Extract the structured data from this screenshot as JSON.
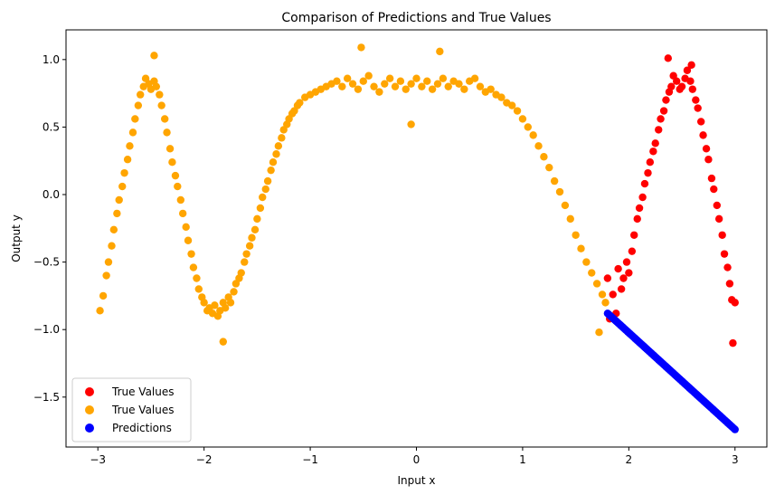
{
  "chart_data": {
    "type": "scatter",
    "title": "Comparison of Predictions and True Values",
    "xlabel": "Input x",
    "ylabel": "Output y",
    "xlim": [
      -3.3,
      3.3
    ],
    "ylim": [
      -1.87,
      1.22
    ],
    "xticks": [
      -3,
      -2,
      -1,
      0,
      1,
      2,
      3
    ],
    "xtick_labels": [
      "−3",
      "−2",
      "−1",
      "0",
      "1",
      "2",
      "3"
    ],
    "yticks": [
      -1.5,
      -1.0,
      -0.5,
      0.0,
      0.5,
      1.0
    ],
    "ytick_labels": [
      "−1.5",
      "−1.0",
      "−0.5",
      "0.0",
      "0.5",
      "1.0"
    ],
    "grid": false,
    "legend_position": "lower-left",
    "series": [
      {
        "name": "True Values",
        "color": "#ff0000",
        "description_of_fn": "noisy y = sin(x) + cos(2x)-like curve",
        "points": [
          [
            1.8,
            -0.62
          ],
          [
            1.82,
            -0.92
          ],
          [
            1.85,
            -0.74
          ],
          [
            1.88,
            -0.88
          ],
          [
            1.9,
            -0.55
          ],
          [
            1.93,
            -0.7
          ],
          [
            1.95,
            -0.62
          ],
          [
            1.98,
            -0.5
          ],
          [
            2.0,
            -0.58
          ],
          [
            2.03,
            -0.42
          ],
          [
            2.05,
            -0.3
          ],
          [
            2.08,
            -0.18
          ],
          [
            2.1,
            -0.1
          ],
          [
            2.13,
            -0.02
          ],
          [
            2.15,
            0.08
          ],
          [
            2.18,
            0.16
          ],
          [
            2.2,
            0.24
          ],
          [
            2.23,
            0.32
          ],
          [
            2.25,
            0.38
          ],
          [
            2.28,
            0.48
          ],
          [
            2.3,
            0.56
          ],
          [
            2.33,
            0.62
          ],
          [
            2.35,
            0.7
          ],
          [
            2.38,
            0.76
          ],
          [
            2.4,
            0.8
          ],
          [
            2.42,
            0.88
          ],
          [
            2.45,
            0.84
          ],
          [
            2.48,
            0.78
          ],
          [
            2.5,
            0.8
          ],
          [
            2.53,
            0.86
          ],
          [
            2.55,
            0.92
          ],
          [
            2.58,
            0.84
          ],
          [
            2.6,
            0.78
          ],
          [
            2.63,
            0.7
          ],
          [
            2.65,
            0.64
          ],
          [
            2.68,
            0.54
          ],
          [
            2.7,
            0.44
          ],
          [
            2.73,
            0.34
          ],
          [
            2.75,
            0.26
          ],
          [
            2.78,
            0.12
          ],
          [
            2.8,
            0.04
          ],
          [
            2.83,
            -0.08
          ],
          [
            2.85,
            -0.18
          ],
          [
            2.88,
            -0.3
          ],
          [
            2.9,
            -0.44
          ],
          [
            2.93,
            -0.54
          ],
          [
            2.95,
            -0.66
          ],
          [
            2.97,
            -0.78
          ],
          [
            3.0,
            -0.8
          ],
          [
            2.98,
            -1.1
          ],
          [
            2.37,
            1.01
          ],
          [
            2.59,
            0.96
          ]
        ]
      },
      {
        "name": "True Values",
        "color": "#ffa500",
        "points": [
          [
            -2.98,
            -0.86
          ],
          [
            -2.95,
            -0.75
          ],
          [
            -2.92,
            -0.6
          ],
          [
            -2.9,
            -0.5
          ],
          [
            -2.87,
            -0.38
          ],
          [
            -2.85,
            -0.26
          ],
          [
            -2.82,
            -0.14
          ],
          [
            -2.8,
            -0.04
          ],
          [
            -2.77,
            0.06
          ],
          [
            -2.75,
            0.16
          ],
          [
            -2.72,
            0.26
          ],
          [
            -2.7,
            0.36
          ],
          [
            -2.67,
            0.46
          ],
          [
            -2.65,
            0.56
          ],
          [
            -2.62,
            0.66
          ],
          [
            -2.6,
            0.74
          ],
          [
            -2.57,
            0.8
          ],
          [
            -2.55,
            0.86
          ],
          [
            -2.52,
            0.82
          ],
          [
            -2.5,
            0.78
          ],
          [
            -2.47,
            0.84
          ],
          [
            -2.45,
            0.8
          ],
          [
            -2.42,
            0.74
          ],
          [
            -2.4,
            0.66
          ],
          [
            -2.37,
            0.56
          ],
          [
            -2.35,
            0.46
          ],
          [
            -2.32,
            0.34
          ],
          [
            -2.3,
            0.24
          ],
          [
            -2.27,
            0.14
          ],
          [
            -2.25,
            0.06
          ],
          [
            -2.22,
            -0.04
          ],
          [
            -2.2,
            -0.14
          ],
          [
            -2.17,
            -0.24
          ],
          [
            -2.15,
            -0.34
          ],
          [
            -2.12,
            -0.44
          ],
          [
            -2.1,
            -0.54
          ],
          [
            -2.07,
            -0.62
          ],
          [
            -2.05,
            -0.7
          ],
          [
            -2.02,
            -0.76
          ],
          [
            -2.0,
            -0.8
          ],
          [
            -1.97,
            -0.86
          ],
          [
            -1.95,
            -0.84
          ],
          [
            -1.92,
            -0.88
          ],
          [
            -1.9,
            -0.82
          ],
          [
            -1.87,
            -0.9
          ],
          [
            -1.85,
            -0.86
          ],
          [
            -1.82,
            -0.8
          ],
          [
            -1.8,
            -0.84
          ],
          [
            -1.77,
            -0.76
          ],
          [
            -1.75,
            -0.8
          ],
          [
            -1.72,
            -0.72
          ],
          [
            -1.7,
            -0.66
          ],
          [
            -1.67,
            -0.62
          ],
          [
            -1.65,
            -0.58
          ],
          [
            -1.62,
            -0.5
          ],
          [
            -1.6,
            -0.44
          ],
          [
            -1.57,
            -0.38
          ],
          [
            -1.55,
            -0.32
          ],
          [
            -1.52,
            -0.26
          ],
          [
            -1.5,
            -0.18
          ],
          [
            -1.47,
            -0.1
          ],
          [
            -1.45,
            -0.02
          ],
          [
            -1.42,
            0.04
          ],
          [
            -1.4,
            0.1
          ],
          [
            -1.37,
            0.18
          ],
          [
            -1.35,
            0.24
          ],
          [
            -1.32,
            0.3
          ],
          [
            -1.3,
            0.36
          ],
          [
            -1.27,
            0.42
          ],
          [
            -1.25,
            0.48
          ],
          [
            -1.22,
            0.52
          ],
          [
            -1.2,
            0.56
          ],
          [
            -1.17,
            0.6
          ],
          [
            -1.15,
            0.62
          ],
          [
            -1.12,
            0.66
          ],
          [
            -1.1,
            0.68
          ],
          [
            -1.05,
            0.72
          ],
          [
            -1.0,
            0.74
          ],
          [
            -0.95,
            0.76
          ],
          [
            -0.9,
            0.78
          ],
          [
            -0.85,
            0.8
          ],
          [
            -0.8,
            0.82
          ],
          [
            -0.75,
            0.84
          ],
          [
            -0.7,
            0.8
          ],
          [
            -0.65,
            0.86
          ],
          [
            -0.6,
            0.82
          ],
          [
            -0.55,
            0.78
          ],
          [
            -0.5,
            0.84
          ],
          [
            -0.45,
            0.88
          ],
          [
            -0.4,
            0.8
          ],
          [
            -0.35,
            0.76
          ],
          [
            -0.3,
            0.82
          ],
          [
            -0.25,
            0.86
          ],
          [
            -0.2,
            0.8
          ],
          [
            -0.15,
            0.84
          ],
          [
            -0.1,
            0.78
          ],
          [
            -0.05,
            0.82
          ],
          [
            0.0,
            0.86
          ],
          [
            0.05,
            0.8
          ],
          [
            0.1,
            0.84
          ],
          [
            0.15,
            0.78
          ],
          [
            0.2,
            0.82
          ],
          [
            0.25,
            0.86
          ],
          [
            0.3,
            0.8
          ],
          [
            0.35,
            0.84
          ],
          [
            0.4,
            0.82
          ],
          [
            0.45,
            0.78
          ],
          [
            0.5,
            0.84
          ],
          [
            0.55,
            0.86
          ],
          [
            0.6,
            0.8
          ],
          [
            0.65,
            0.76
          ],
          [
            0.7,
            0.78
          ],
          [
            0.75,
            0.74
          ],
          [
            0.8,
            0.72
          ],
          [
            0.85,
            0.68
          ],
          [
            0.9,
            0.66
          ],
          [
            0.95,
            0.62
          ],
          [
            1.0,
            0.56
          ],
          [
            1.05,
            0.5
          ],
          [
            1.1,
            0.44
          ],
          [
            1.15,
            0.36
          ],
          [
            1.2,
            0.28
          ],
          [
            1.25,
            0.2
          ],
          [
            1.3,
            0.1
          ],
          [
            1.35,
            0.02
          ],
          [
            1.4,
            -0.08
          ],
          [
            1.45,
            -0.18
          ],
          [
            1.5,
            -0.3
          ],
          [
            1.55,
            -0.4
          ],
          [
            1.6,
            -0.5
          ],
          [
            1.65,
            -0.58
          ],
          [
            1.7,
            -0.66
          ],
          [
            1.75,
            -0.74
          ],
          [
            1.78,
            -0.8
          ],
          [
            -0.52,
            1.09
          ],
          [
            -2.47,
            1.03
          ],
          [
            -1.82,
            -1.09
          ],
          [
            -0.05,
            0.52
          ],
          [
            0.22,
            1.06
          ],
          [
            1.72,
            -1.02
          ]
        ]
      },
      {
        "name": "Predictions",
        "color": "#0000ff",
        "linear": {
          "x_start": 1.8,
          "y_start": -0.88,
          "x_end": 3.0,
          "y_end": -1.74,
          "count": 121
        }
      }
    ],
    "legend": [
      "True Values",
      "True Values",
      "Predictions"
    ]
  }
}
